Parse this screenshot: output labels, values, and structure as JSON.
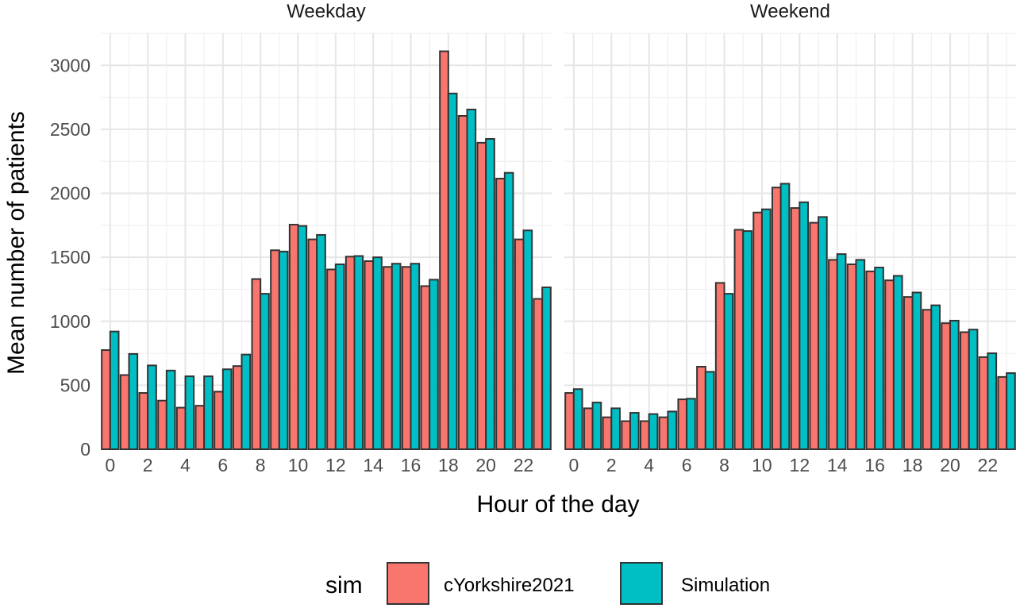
{
  "chart_data": {
    "type": "bar",
    "xlabel": "Hour of the day",
    "ylabel": "Mean number of patients",
    "ylim": [
      0,
      3250
    ],
    "yticks": [
      0,
      500,
      1000,
      1500,
      2000,
      2500,
      3000
    ],
    "xticks": [
      0,
      2,
      4,
      6,
      8,
      10,
      12,
      14,
      16,
      18,
      20,
      22
    ],
    "grid": true,
    "legend": {
      "title": "sim",
      "position": "bottom",
      "entries": [
        {
          "name": "cYorkshire2021",
          "color": "#F8766D"
        },
        {
          "name": "Simulation",
          "color": "#00BFC4"
        }
      ]
    },
    "bar_outline_color": "#333333",
    "panels": [
      {
        "title": "Weekday",
        "x": [
          0,
          1,
          2,
          3,
          4,
          5,
          6,
          7,
          8,
          9,
          10,
          11,
          12,
          13,
          14,
          15,
          16,
          17,
          18,
          19,
          20,
          21,
          22,
          23
        ],
        "series": [
          {
            "name": "cYorkshire2021",
            "values": [
              775,
              580,
              440,
              380,
              325,
              340,
              450,
              650,
              1330,
              1555,
              1755,
              1640,
              1405,
              1505,
              1470,
              1425,
              1425,
              1275,
              3110,
              2605,
              2395,
              2115,
              1640,
              1175
            ]
          },
          {
            "name": "Simulation",
            "values": [
              920,
              745,
              655,
              615,
              570,
              570,
              625,
              740,
              1215,
              1545,
              1745,
              1675,
              1445,
              1510,
              1500,
              1450,
              1450,
              1325,
              2780,
              2655,
              2425,
              2160,
              1710,
              1265
            ]
          }
        ]
      },
      {
        "title": "Weekend",
        "x": [
          0,
          1,
          2,
          3,
          4,
          5,
          6,
          7,
          8,
          9,
          10,
          11,
          12,
          13,
          14,
          15,
          16,
          17,
          18,
          19,
          20,
          21,
          22,
          23
        ],
        "series": [
          {
            "name": "cYorkshire2021",
            "values": [
              440,
              320,
              250,
              220,
              220,
              250,
              390,
              645,
              1300,
              1715,
              1850,
              2045,
              1885,
              1770,
              1480,
              1445,
              1390,
              1320,
              1190,
              1090,
              985,
              915,
              720,
              565
            ]
          },
          {
            "name": "Simulation",
            "values": [
              470,
              365,
              320,
              285,
              275,
              295,
              395,
              605,
              1215,
              1705,
              1875,
              2075,
              1930,
              1815,
              1525,
              1480,
              1420,
              1355,
              1225,
              1125,
              1005,
              935,
              750,
              595
            ]
          }
        ]
      }
    ]
  }
}
